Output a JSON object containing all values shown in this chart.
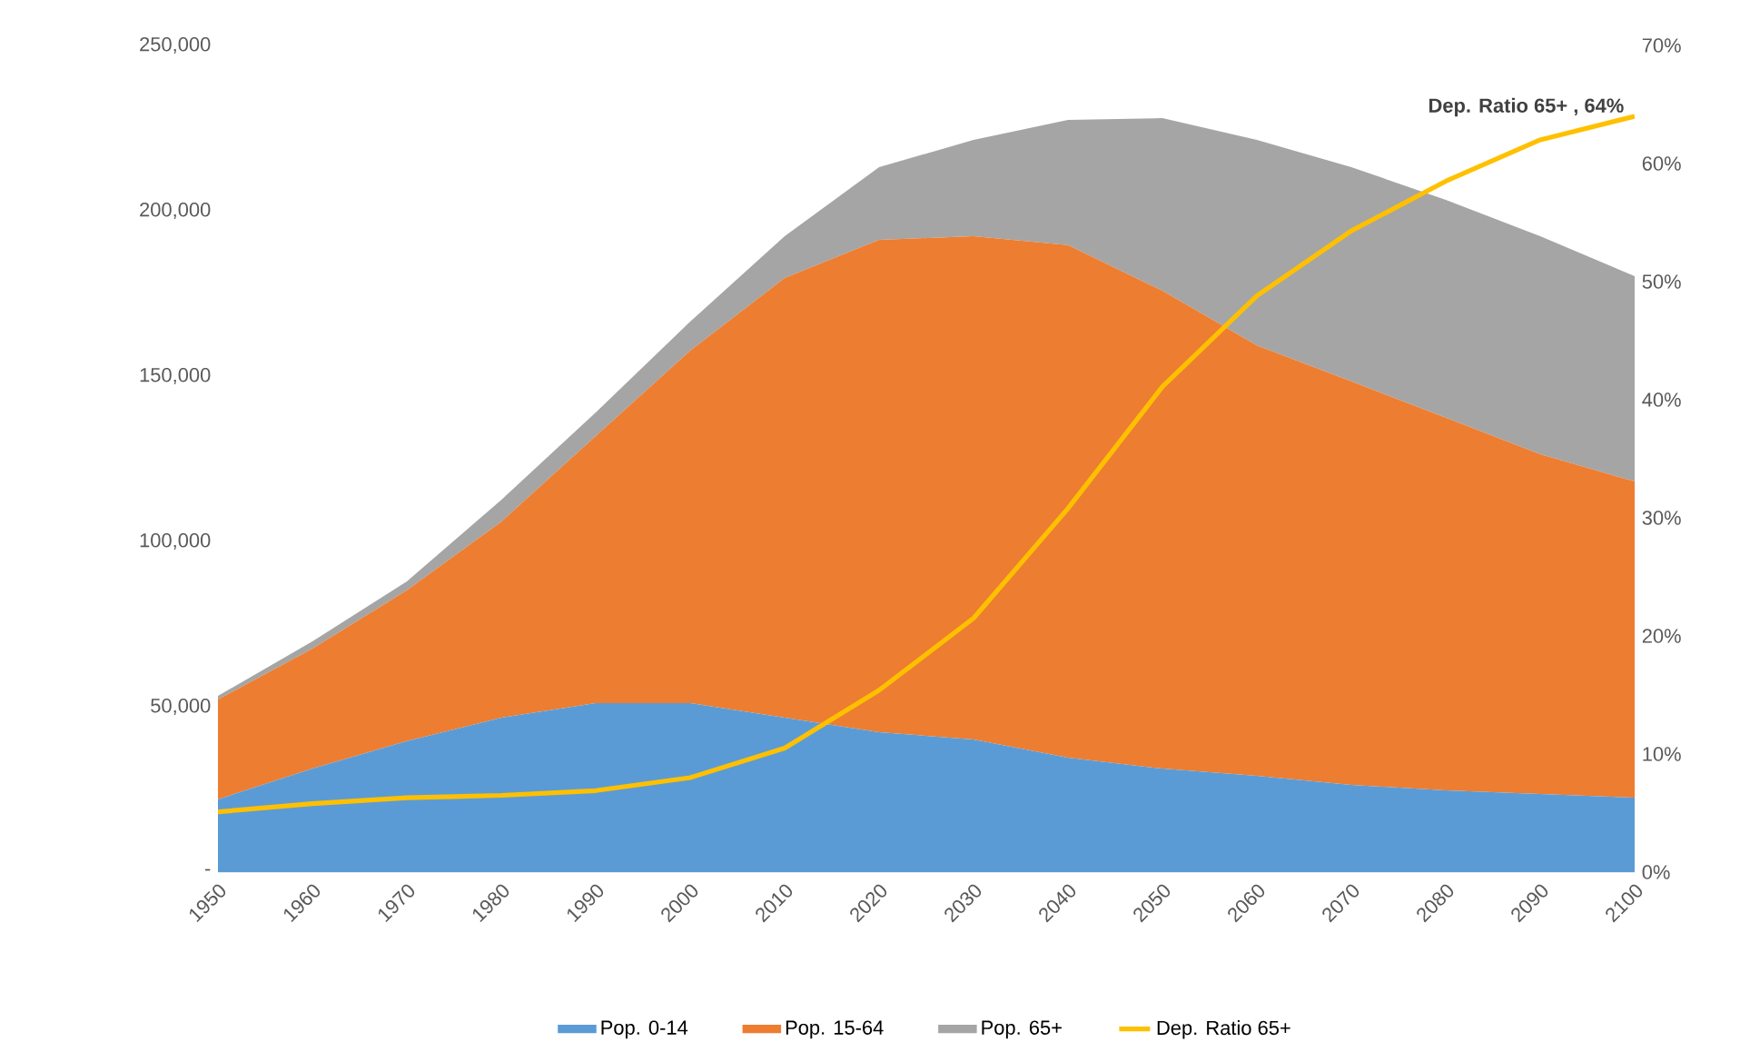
{
  "chart_data": {
    "type": "area",
    "stacked": true,
    "legend": "bottom",
    "x": [
      1950,
      1960,
      1970,
      1980,
      1990,
      2000,
      2010,
      2020,
      2030,
      2040,
      2050,
      2060,
      2070,
      2080,
      2090,
      2100
    ],
    "xlim": [
      1950,
      2100
    ],
    "xticks": [
      1950,
      1960,
      1970,
      1980,
      1990,
      2000,
      2010,
      2020,
      2030,
      2040,
      2050,
      2060,
      2070,
      2080,
      2090,
      2100
    ],
    "ylim": [
      0,
      250000
    ],
    "yticks": [
      {
        "value": 0,
        "label": "-"
      },
      {
        "value": 50000,
        "label": "50,000"
      },
      {
        "value": 100000,
        "label": "100,000"
      },
      {
        "value": 150000,
        "label": "150,000"
      },
      {
        "value": 200000,
        "label": "200,000"
      },
      {
        "value": 250000,
        "label": "250,000"
      }
    ],
    "y2lim": [
      0,
      70
    ],
    "y2ticks": [
      {
        "value": 0,
        "label": "0%"
      },
      {
        "value": 10,
        "label": "10%"
      },
      {
        "value": 20,
        "label": "20%"
      },
      {
        "value": 30,
        "label": "30%"
      },
      {
        "value": 40,
        "label": "40%"
      },
      {
        "value": 50,
        "label": "50%"
      },
      {
        "value": 60,
        "label": "60%"
      },
      {
        "value": 70,
        "label": "70%"
      }
    ],
    "series": [
      {
        "name": "Pop. 0-14",
        "color": "#5b9bd5",
        "values": [
          22000,
          31300,
          39600,
          46700,
          51100,
          51100,
          46700,
          42300,
          40100,
          34600,
          31300,
          29100,
          26400,
          24700,
          23600,
          22500
        ]
      },
      {
        "name": "Pop. 15-64",
        "color": "#ed7d31",
        "values": [
          30200,
          36300,
          45600,
          59300,
          80800,
          106600,
          133000,
          148900,
          152200,
          155000,
          144500,
          130200,
          122000,
          112700,
          102800,
          95600
        ]
      },
      {
        "name": "Pop. 65+",
        "color": "#a5a5a5",
        "values": [
          1100,
          2200,
          2700,
          6600,
          7100,
          8800,
          12600,
          22000,
          29100,
          37900,
          52200,
          62100,
          64800,
          65900,
          65900,
          62100
        ]
      },
      {
        "name": "Dep. Ratio 65+",
        "type": "line",
        "axis": "y2",
        "color": "#ffc000",
        "values": [
          5.1,
          5.8,
          6.3,
          6.5,
          6.9,
          8.0,
          10.5,
          15.4,
          21.5,
          30.8,
          41.1,
          48.8,
          54.3,
          58.5,
          62.0,
          64
        ]
      }
    ],
    "annotations": [
      "Dep. Ratio 65+ , 64%"
    ]
  }
}
